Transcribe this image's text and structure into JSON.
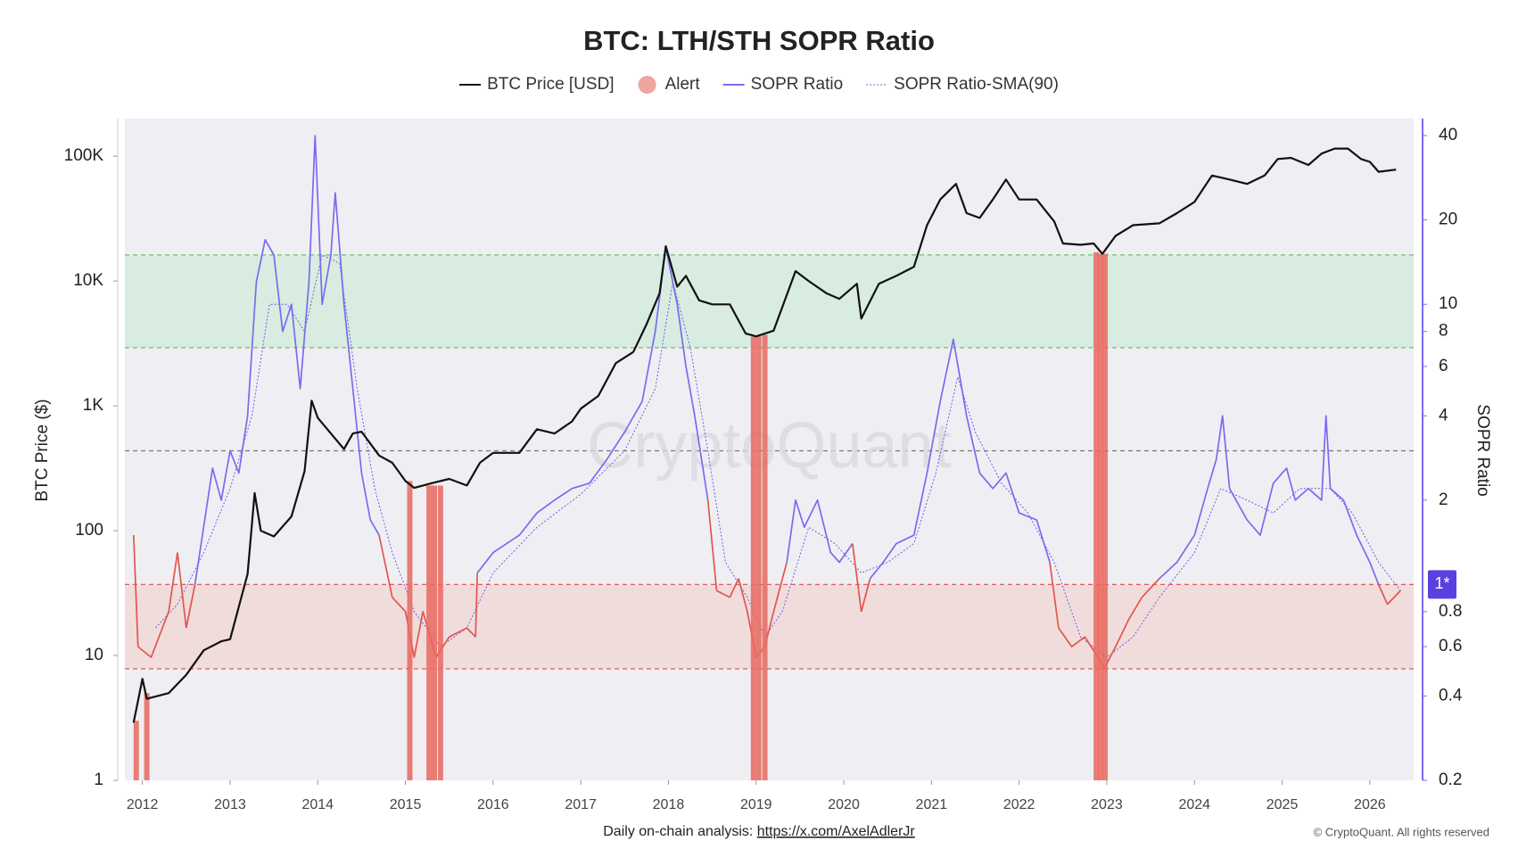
{
  "chart_data": {
    "type": "line",
    "title": "BTC: LTH/STH SOPR Ratio",
    "y_label": "BTC Price ($)",
    "y2_label": "SOPR Ratio",
    "watermark": "CryptoQuant",
    "footer": {
      "text": "Daily on-chain analysis:",
      "link": "https://x.com/AxelAdlerJr",
      "credit": "© CryptoQuant. All rights reserved"
    },
    "xlim": [
      2011.8,
      2026.5
    ],
    "xticks": [
      2012,
      2013,
      2014,
      2015,
      2016,
      2017,
      2018,
      2019,
      2020,
      2021,
      2022,
      2023,
      2024,
      2025,
      2026
    ],
    "log_y": true,
    "ylim": [
      1,
      200000
    ],
    "yticks": [
      1,
      10,
      100,
      {
        "value": 1000,
        "label": "1K"
      },
      {
        "value": 10000,
        "label": "10K"
      },
      {
        "value": 100000,
        "label": "100K"
      }
    ],
    "log_y2": true,
    "y2lim": [
      0.2,
      46
    ],
    "y2ticks": [
      0.2,
      0.4,
      0.6,
      0.8,
      2,
      4,
      6,
      8,
      10,
      20,
      40
    ],
    "current_marker": {
      "value": 1,
      "label": "1*",
      "color": "#5b3fe0"
    },
    "bands": [
      {
        "axis": "y2",
        "range": [
          7,
          15
        ],
        "color": "#d9ece0",
        "edge_color": "#6cbf6c"
      },
      {
        "axis": "y2",
        "range": [
          0.5,
          1
        ],
        "color": "#f1dcdc",
        "edge_color": "#e05a5a"
      }
    ],
    "reference_lines": [
      {
        "axis": "y2",
        "value": 3,
        "color": "#777777"
      }
    ],
    "grid": false,
    "legend_position": "top",
    "series": [
      {
        "name": "BTC Price [USD]",
        "kind": "line",
        "axis": "y",
        "color": "#111111",
        "x": [
          2011.9,
          2012.0,
          2012.05,
          2012.3,
          2012.5,
          2012.7,
          2012.9,
          2013.0,
          2013.2,
          2013.28,
          2013.35,
          2013.5,
          2013.7,
          2013.85,
          2013.93,
          2014.0,
          2014.15,
          2014.3,
          2014.4,
          2014.5,
          2014.7,
          2014.85,
          2015.0,
          2015.1,
          2015.3,
          2015.5,
          2015.7,
          2015.85,
          2016.0,
          2016.3,
          2016.5,
          2016.7,
          2016.9,
          2017.0,
          2017.2,
          2017.4,
          2017.6,
          2017.75,
          2017.9,
          2017.97,
          2018.1,
          2018.2,
          2018.35,
          2018.5,
          2018.7,
          2018.88,
          2019.0,
          2019.2,
          2019.45,
          2019.6,
          2019.8,
          2019.95,
          2020.15,
          2020.2,
          2020.4,
          2020.6,
          2020.8,
          2020.95,
          2021.1,
          2021.28,
          2021.4,
          2021.55,
          2021.7,
          2021.85,
          2022.0,
          2022.2,
          2022.4,
          2022.5,
          2022.7,
          2022.85,
          2022.95,
          2023.1,
          2023.3,
          2023.6,
          2023.8,
          2024.0,
          2024.2,
          2024.4,
          2024.6,
          2024.8,
          2024.95,
          2025.1,
          2025.3,
          2025.45,
          2025.6,
          2025.75,
          2025.9,
          2026.0,
          2026.1,
          2026.3
        ],
        "values": [
          2.9,
          6.5,
          4.5,
          5,
          7,
          11,
          13,
          13.5,
          45,
          200,
          100,
          90,
          130,
          300,
          1100,
          800,
          600,
          450,
          600,
          620,
          400,
          350,
          250,
          220,
          240,
          260,
          230,
          350,
          420,
          420,
          650,
          600,
          750,
          950,
          1200,
          2200,
          2700,
          4500,
          8000,
          19000,
          9000,
          11000,
          7000,
          6500,
          6500,
          3800,
          3600,
          4000,
          12000,
          10000,
          8000,
          7200,
          9500,
          5000,
          9500,
          11000,
          13000,
          28000,
          45000,
          60000,
          35000,
          32000,
          45000,
          65000,
          45000,
          45000,
          30000,
          20000,
          19500,
          20000,
          16500,
          23000,
          28000,
          29000,
          35000,
          43000,
          70000,
          65000,
          60000,
          70000,
          95000,
          97000,
          85000,
          105000,
          115000,
          115000,
          95000,
          90000,
          75000,
          78000
        ]
      },
      {
        "name": "Alert",
        "kind": "alert",
        "axis": "y",
        "color": "#e8695f",
        "x": [
          2011.93,
          2012.05,
          2015.05,
          2015.27,
          2015.33,
          2015.4,
          2018.97,
          2019.03,
          2019.1,
          2022.88,
          2022.93,
          2022.98
        ],
        "values": [
          3,
          5,
          250,
          230,
          230,
          230,
          3600,
          3600,
          3700,
          17000,
          16500,
          16500
        ]
      },
      {
        "name": "SOPR Ratio",
        "kind": "line",
        "axis": "y2",
        "color": "#7a6af0",
        "alert_color": "#e0564e",
        "x": [
          2011.9,
          2011.95,
          2012.1,
          2012.3,
          2012.4,
          2012.5,
          2012.6,
          2012.8,
          2012.9,
          2013.0,
          2013.1,
          2013.2,
          2013.3,
          2013.4,
          2013.5,
          2013.6,
          2013.7,
          2013.8,
          2013.9,
          2013.97,
          2014.05,
          2014.15,
          2014.2,
          2014.3,
          2014.4,
          2014.5,
          2014.6,
          2014.7,
          2014.85,
          2015.0,
          2015.1,
          2015.2,
          2015.35,
          2015.5,
          2015.7,
          2015.8,
          2015.82,
          2016.0,
          2016.3,
          2016.5,
          2016.7,
          2016.9,
          2017.1,
          2017.3,
          2017.5,
          2017.7,
          2017.85,
          2017.97,
          2018.1,
          2018.2,
          2018.3,
          2018.45,
          2018.55,
          2018.7,
          2018.8,
          2018.9,
          2019.0,
          2019.1,
          2019.2,
          2019.35,
          2019.45,
          2019.55,
          2019.7,
          2019.85,
          2019.95,
          2020.1,
          2020.2,
          2020.3,
          2020.45,
          2020.6,
          2020.8,
          2020.95,
          2021.1,
          2021.25,
          2021.4,
          2021.55,
          2021.7,
          2021.85,
          2022.0,
          2022.2,
          2022.35,
          2022.45,
          2022.6,
          2022.75,
          2022.9,
          2022.97,
          2023.1,
          2023.25,
          2023.4,
          2023.6,
          2023.8,
          2024.0,
          2024.15,
          2024.25,
          2024.32,
          2024.4,
          2024.6,
          2024.75,
          2024.9,
          2025.05,
          2025.15,
          2025.3,
          2025.45,
          2025.5,
          2025.55,
          2025.7,
          2025.85,
          2026.0,
          2026.1,
          2026.2,
          2026.35
        ],
        "values": [
          1.5,
          0.6,
          0.55,
          0.8,
          1.3,
          0.7,
          1.0,
          2.6,
          2.0,
          3.0,
          2.5,
          4,
          12,
          17,
          15,
          8,
          10,
          5,
          12,
          40,
          10,
          15,
          25,
          10,
          5,
          2.5,
          1.7,
          1.5,
          0.9,
          0.8,
          0.55,
          0.8,
          0.55,
          0.65,
          0.7,
          0.65,
          1.1,
          1.3,
          1.5,
          1.8,
          2.0,
          2.2,
          2.3,
          2.8,
          3.5,
          4.5,
          8,
          16,
          10,
          6,
          4,
          2.0,
          0.95,
          0.9,
          1.05,
          0.8,
          0.55,
          0.6,
          0.8,
          1.2,
          2.0,
          1.6,
          2.0,
          1.3,
          1.2,
          1.4,
          0.8,
          1.05,
          1.2,
          1.4,
          1.5,
          2.5,
          4.5,
          7.5,
          4,
          2.5,
          2.2,
          2.5,
          1.8,
          1.7,
          1.2,
          0.7,
          0.6,
          0.65,
          0.55,
          0.5,
          0.6,
          0.75,
          0.9,
          1.05,
          1.2,
          1.5,
          2.2,
          2.8,
          4.0,
          2.2,
          1.7,
          1.5,
          2.3,
          2.6,
          2.0,
          2.2,
          2.0,
          4.0,
          2.2,
          2.0,
          1.5,
          1.2,
          1.0,
          0.85,
          0.95
        ]
      },
      {
        "name": "SOPR Ratio-SMA(90)",
        "kind": "dashed",
        "axis": "y2",
        "color": "#6a5ee8",
        "x": [
          2012.15,
          2012.4,
          2012.7,
          2013.0,
          2013.25,
          2013.45,
          2013.65,
          2013.85,
          2014.05,
          2014.25,
          2014.45,
          2014.65,
          2014.85,
          2015.1,
          2015.4,
          2015.7,
          2016.0,
          2016.5,
          2017.0,
          2017.5,
          2017.85,
          2018.05,
          2018.25,
          2018.45,
          2018.65,
          2018.9,
          2019.1,
          2019.3,
          2019.6,
          2019.9,
          2020.2,
          2020.5,
          2020.8,
          2021.05,
          2021.3,
          2021.5,
          2021.8,
          2022.1,
          2022.4,
          2022.7,
          2023.0,
          2023.3,
          2023.6,
          2024.0,
          2024.3,
          2024.6,
          2024.9,
          2025.2,
          2025.55,
          2025.8,
          2026.1,
          2026.35
        ],
        "values": [
          0.7,
          0.85,
          1.3,
          2.2,
          4,
          10,
          10,
          8,
          15,
          14,
          5,
          2.2,
          1.3,
          0.8,
          0.6,
          0.7,
          1.1,
          1.6,
          2.1,
          3,
          5,
          12,
          7,
          3,
          1.2,
          0.9,
          0.65,
          0.8,
          1.6,
          1.4,
          1.1,
          1.2,
          1.4,
          2.5,
          5.5,
          3.5,
          2.3,
          1.8,
          1.2,
          0.65,
          0.55,
          0.65,
          0.9,
          1.3,
          2.2,
          2.0,
          1.8,
          2.2,
          2.2,
          1.8,
          1.2,
          0.95
        ]
      }
    ]
  }
}
